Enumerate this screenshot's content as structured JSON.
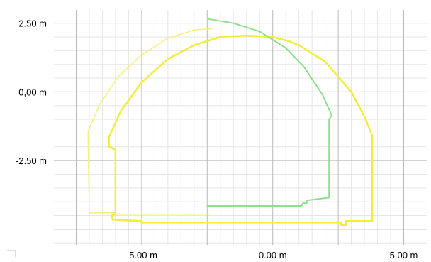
{
  "chart_data": {
    "type": "line",
    "title": "",
    "xlabel": "",
    "ylabel": "",
    "xlim": [
      -7.6,
      5.4
    ],
    "ylim": [
      -5.5,
      3.0
    ],
    "grid": true,
    "x_ticks": [
      {
        "value": -5.0,
        "label": "-5.00 m"
      },
      {
        "value": 0.0,
        "label": "0.00 m"
      },
      {
        "value": 5.0,
        "label": "5.00 m"
      }
    ],
    "y_ticks": [
      {
        "value": 2.5,
        "label": "2.50 m"
      },
      {
        "value": 0.0,
        "label": "0,00 m"
      },
      {
        "value": -2.5,
        "label": "-2.50 m"
      }
    ],
    "series": [
      {
        "color": "#f5f07a",
        "width": 1.5,
        "points": [
          [
            -2.4,
            -4.45
          ],
          [
            -6.0,
            -4.45
          ],
          [
            -6.0,
            -4.4
          ],
          [
            -7.0,
            -4.4
          ],
          [
            -7.05,
            -1.45
          ],
          [
            -6.6,
            -0.45
          ],
          [
            -5.9,
            0.55
          ],
          [
            -5.0,
            1.35
          ],
          [
            -4.0,
            1.95
          ],
          [
            -3.0,
            2.25
          ],
          [
            -2.3,
            2.3
          ]
        ]
      },
      {
        "color": "#f2ec3a",
        "width": 2.5,
        "points": [
          [
            0.6,
            1.85
          ],
          [
            0.0,
            2.0
          ],
          [
            -1.0,
            2.05
          ],
          [
            -2.0,
            2.0
          ],
          [
            -3.0,
            1.7
          ],
          [
            -4.0,
            1.2
          ],
          [
            -5.0,
            0.35
          ],
          [
            -5.8,
            -0.7
          ],
          [
            -6.25,
            -1.65
          ],
          [
            -6.25,
            -2.0
          ],
          [
            -6.0,
            -2.1
          ],
          [
            -6.0,
            -4.45
          ],
          [
            -6.15,
            -4.5
          ],
          [
            -6.1,
            -4.65
          ],
          [
            -5.0,
            -4.7
          ],
          [
            -5.0,
            -4.75
          ],
          [
            -3.0,
            -4.75
          ],
          [
            -2.4,
            -4.75
          ],
          [
            0.0,
            -4.75
          ],
          [
            2.0,
            -4.75
          ],
          [
            2.6,
            -4.75
          ],
          [
            2.6,
            -4.85
          ],
          [
            2.8,
            -4.85
          ],
          [
            2.8,
            -4.7
          ],
          [
            3.8,
            -4.7
          ],
          [
            3.8,
            -1.6
          ],
          [
            3.5,
            -0.9
          ],
          [
            3.0,
            0.0
          ],
          [
            2.0,
            1.1
          ],
          [
            1.0,
            1.7
          ],
          [
            0.6,
            1.85
          ]
        ]
      },
      {
        "color": "#8ee08e",
        "width": 2,
        "points": [
          [
            -2.45,
            2.65
          ],
          [
            -1.5,
            2.5
          ],
          [
            -0.5,
            2.2
          ],
          [
            0.5,
            1.6
          ],
          [
            1.2,
            0.9
          ],
          [
            1.9,
            -0.1
          ],
          [
            2.25,
            -0.85
          ],
          [
            2.15,
            -1.0
          ],
          [
            2.15,
            -3.85
          ],
          [
            1.3,
            -3.95
          ],
          [
            1.3,
            -4.05
          ],
          [
            1.15,
            -4.05
          ],
          [
            1.1,
            -4.15
          ],
          [
            -2.5,
            -4.15
          ]
        ]
      }
    ]
  }
}
